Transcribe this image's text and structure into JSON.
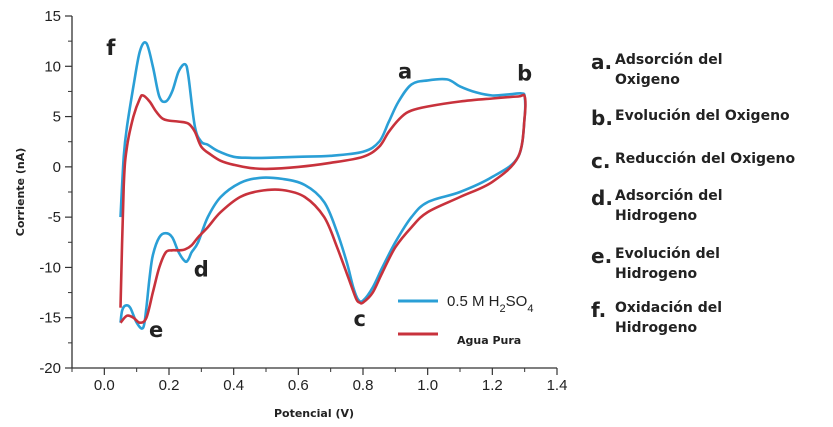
{
  "chart_data": {
    "type": "line",
    "title": "",
    "xlabel": "Potencial (V)",
    "ylabel": "Corriente (nA)",
    "xlim": [
      -0.1,
      1.4
    ],
    "ylim": [
      -20,
      15
    ],
    "xticks": [
      "0.0",
      "0.2",
      "0.4",
      "0.6",
      "0.8",
      "1.0",
      "1.2",
      "1.4"
    ],
    "xtick_values": [
      0.0,
      0.2,
      0.4,
      0.6,
      0.8,
      1.0,
      1.2,
      1.4
    ],
    "yticks": [
      "15",
      "10",
      "5",
      "0",
      "-5",
      "-10",
      "-15",
      "-20"
    ],
    "ytick_values": [
      15,
      10,
      5,
      0,
      -5,
      -10,
      -15,
      -20
    ],
    "grid": false,
    "legend_position": "bottom-right",
    "series": [
      {
        "name": "0.5 M H2SO4",
        "legend_parts": {
          "main": "0.5 M H",
          "sub1": "2",
          "mid": "SO",
          "sub2": "4"
        },
        "color": "#2a9fd6",
        "x": [
          0.05,
          0.06,
          0.07,
          0.09,
          0.11,
          0.13,
          0.15,
          0.17,
          0.19,
          0.21,
          0.23,
          0.25,
          0.26,
          0.28,
          0.3,
          0.32,
          0.35,
          0.4,
          0.45,
          0.5,
          0.6,
          0.7,
          0.8,
          0.85,
          0.88,
          0.91,
          0.95,
          1.0,
          1.06,
          1.1,
          1.15,
          1.2,
          1.25,
          1.29,
          1.3,
          1.3,
          1.28,
          1.2,
          1.1,
          1.0,
          0.95,
          0.9,
          0.86,
          0.83,
          0.8,
          0.785,
          0.77,
          0.75,
          0.72,
          0.68,
          0.62,
          0.55,
          0.48,
          0.42,
          0.36,
          0.32,
          0.29,
          0.27,
          0.26,
          0.25,
          0.23,
          0.21,
          0.19,
          0.17,
          0.15,
          0.14,
          0.13,
          0.12,
          0.1,
          0.08,
          0.065,
          0.055,
          0.05
        ],
        "y": [
          -5,
          1,
          4,
          8,
          11.5,
          12.3,
          10,
          7,
          6.5,
          7.5,
          9.5,
          10.2,
          9,
          4,
          2.5,
          2.2,
          1.6,
          1,
          0.9,
          0.9,
          1,
          1.1,
          1.5,
          2.5,
          4.5,
          6.5,
          8.2,
          8.6,
          8.7,
          8,
          7.4,
          7.1,
          7.2,
          7.3,
          7,
          5,
          1,
          -1,
          -2.5,
          -3.5,
          -5,
          -7.5,
          -10,
          -12,
          -13.3,
          -13.2,
          -12,
          -9.5,
          -6.5,
          -3.5,
          -1.8,
          -1.2,
          -1.1,
          -1.6,
          -3,
          -5,
          -7.5,
          -8.5,
          -9.2,
          -9.4,
          -8.5,
          -7,
          -6.6,
          -7,
          -8.8,
          -11,
          -14,
          -16,
          -15.5,
          -14,
          -13.8,
          -14.3,
          -15.5
        ]
      },
      {
        "name": "Agua Pura",
        "color": "#c8323c",
        "x": [
          0.05,
          0.06,
          0.07,
          0.09,
          0.11,
          0.12,
          0.14,
          0.16,
          0.18,
          0.2,
          0.23,
          0.26,
          0.28,
          0.3,
          0.33,
          0.36,
          0.4,
          0.45,
          0.5,
          0.6,
          0.7,
          0.8,
          0.85,
          0.88,
          0.92,
          0.95,
          1.0,
          1.1,
          1.2,
          1.28,
          1.3,
          1.3,
          1.28,
          1.2,
          1.1,
          1.0,
          0.95,
          0.9,
          0.86,
          0.83,
          0.8,
          0.79,
          0.78,
          0.76,
          0.72,
          0.68,
          0.62,
          0.55,
          0.48,
          0.42,
          0.36,
          0.32,
          0.29,
          0.27,
          0.25,
          0.23,
          0.21,
          0.19,
          0.17,
          0.15,
          0.13,
          0.11,
          0.09,
          0.07,
          0.05
        ],
        "y": [
          -14,
          -2,
          2,
          5,
          6.8,
          7.1,
          6.5,
          5.5,
          4.8,
          4.6,
          4.5,
          4.3,
          3.5,
          2,
          1.2,
          0.6,
          0.2,
          -0.1,
          -0.2,
          0,
          0.4,
          1,
          2,
          3.5,
          5,
          5.6,
          6,
          6.5,
          6.8,
          7,
          7,
          5,
          1,
          -1.5,
          -3,
          -4.5,
          -6,
          -8,
          -10.5,
          -12.5,
          -13.5,
          -13.5,
          -13.2,
          -11.5,
          -8,
          -5,
          -3,
          -2.3,
          -2.4,
          -3,
          -4.5,
          -6,
          -7,
          -7.8,
          -8.2,
          -8.3,
          -8.3,
          -8.5,
          -10,
          -12.5,
          -15,
          -15.5,
          -15,
          -14.8,
          -15.5
        ]
      }
    ],
    "peak_labels": [
      {
        "text": "a",
        "x": 0.93,
        "y": 8.8
      },
      {
        "text": "b",
        "x": 1.3,
        "y": 8.6
      },
      {
        "text": "c",
        "x": 0.79,
        "y": -15.8
      },
      {
        "text": "d",
        "x": 0.3,
        "y": -10.9
      },
      {
        "text": "e",
        "x": 0.16,
        "y": -16.9
      },
      {
        "text": "f",
        "x": 0.02,
        "y": 11.1
      }
    ]
  },
  "annotations": [
    {
      "letter": "a.",
      "text": "Adsorción del\nOxigeno"
    },
    {
      "letter": "b.",
      "text": "Evolución del Oxigeno"
    },
    {
      "letter": "c.",
      "text": "Reducción del Oxigeno"
    },
    {
      "letter": "d.",
      "text": "Adsorción del\nHidrogeno"
    },
    {
      "letter": "e.",
      "text": "Evolución del\nHidrogeno"
    },
    {
      "letter": "f.",
      "text": "Oxidación del\nHidrogeno"
    }
  ]
}
